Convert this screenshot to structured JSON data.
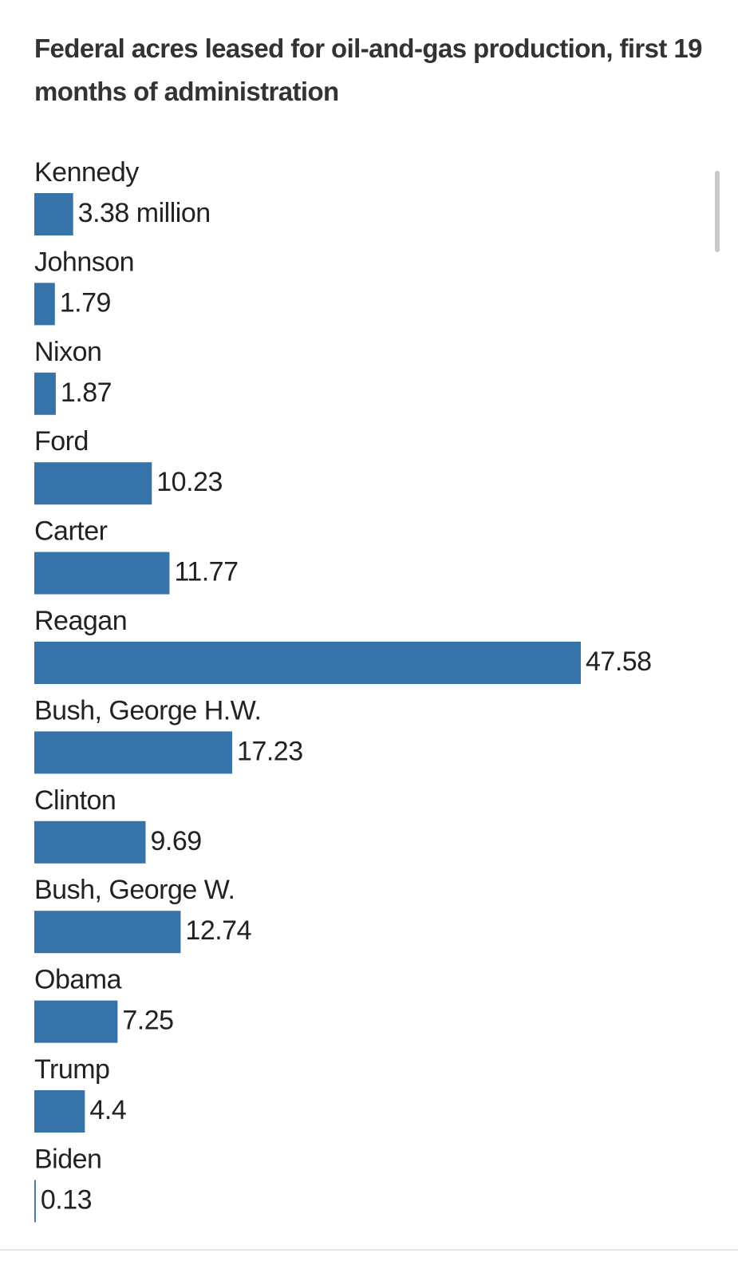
{
  "chart_data": {
    "type": "bar",
    "orientation": "horizontal",
    "title": "Federal acres leased for oil-and-gas production, first 19 months of administration",
    "categories": [
      "Kennedy",
      "Johnson",
      "Nixon",
      "Ford",
      "Carter",
      "Reagan",
      "Bush, George H.W.",
      "Clinton",
      "Bush, George W.",
      "Obama",
      "Trump",
      "Biden"
    ],
    "values": [
      3.38,
      1.79,
      1.87,
      10.23,
      11.77,
      47.58,
      17.23,
      9.69,
      12.74,
      7.25,
      4.4,
      0.13
    ],
    "value_labels": [
      "3.38 million",
      "1.79",
      "1.87",
      "10.23",
      "11.77",
      "47.58",
      "17.23",
      "9.69",
      "12.74",
      "7.25",
      "4.4",
      "0.13"
    ],
    "color": "#3573a8"
  }
}
